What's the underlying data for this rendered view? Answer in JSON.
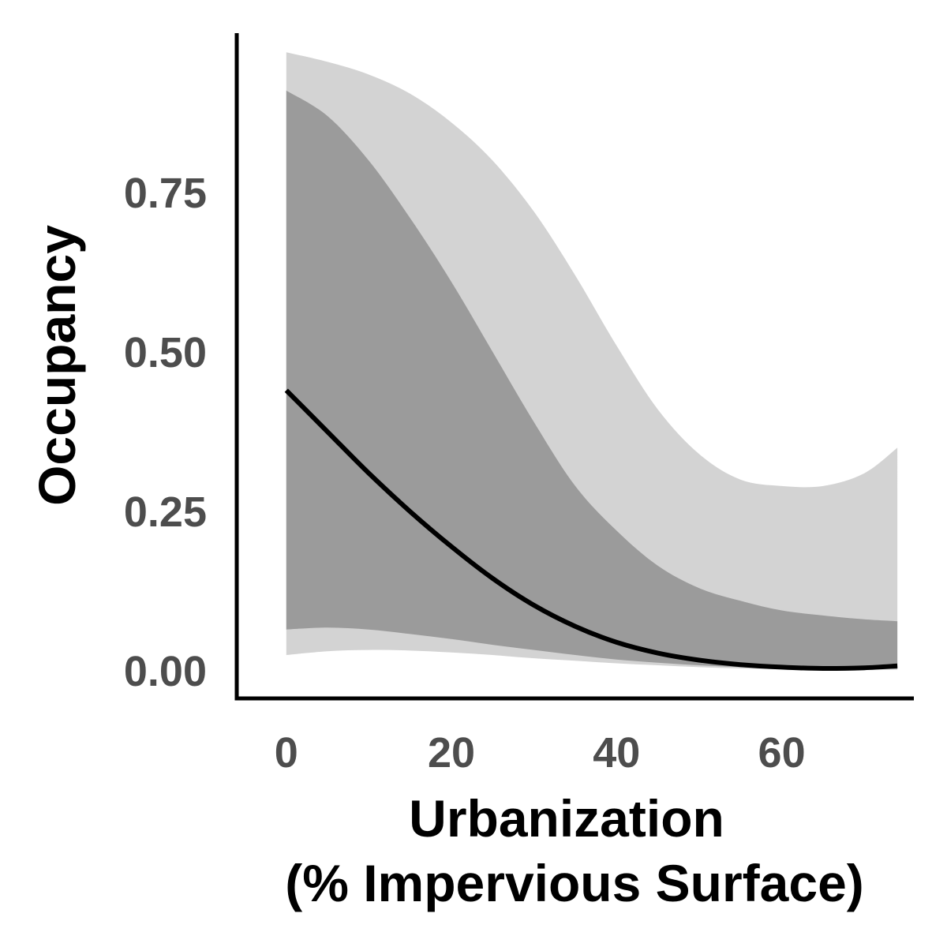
{
  "chart_data": {
    "type": "line",
    "title": "",
    "xlabel": [
      "Urbanization",
      "(% Impervious Surface)"
    ],
    "ylabel": "Occupancy",
    "xlim": [
      -6,
      76
    ],
    "ylim": [
      -0.043,
      1.0
    ],
    "x_ticks": [
      0,
      20,
      40,
      60
    ],
    "x_tick_labels": [
      "0",
      "20",
      "40",
      "60"
    ],
    "y_ticks": [
      0.0,
      0.25,
      0.5,
      0.75
    ],
    "y_tick_labels": [
      "0.00",
      "0.25",
      "0.50",
      "0.75"
    ],
    "grid": false,
    "legend": "none",
    "colors": {
      "outer_band": "#d3d3d3",
      "inner_band": "#9b9b9b",
      "line": "#000000",
      "axis": "#000000",
      "tick_text": "#4d4d4d"
    },
    "series": [
      {
        "kind": "outer_interval",
        "x": [
          0,
          5,
          10,
          15,
          20,
          25,
          30,
          35,
          40,
          45,
          50,
          55,
          60,
          65,
          70,
          74
        ],
        "upper": [
          0.97,
          0.955,
          0.935,
          0.905,
          0.86,
          0.8,
          0.72,
          0.62,
          0.51,
          0.41,
          0.34,
          0.3,
          0.29,
          0.29,
          0.31,
          0.35
        ],
        "lower": [
          0.025,
          0.031,
          0.033,
          0.032,
          0.029,
          0.025,
          0.02,
          0.016,
          0.012,
          0.009,
          0.006,
          0.004,
          0.003,
          0.002,
          0.002,
          0.002
        ]
      },
      {
        "kind": "inner_interval",
        "x": [
          0,
          5,
          10,
          15,
          20,
          25,
          30,
          35,
          40,
          45,
          50,
          55,
          60,
          65,
          70,
          74
        ],
        "upper": [
          0.91,
          0.87,
          0.8,
          0.71,
          0.61,
          0.5,
          0.39,
          0.29,
          0.22,
          0.165,
          0.13,
          0.11,
          0.095,
          0.087,
          0.081,
          0.078
        ],
        "lower": [
          0.065,
          0.068,
          0.065,
          0.058,
          0.05,
          0.041,
          0.033,
          0.025,
          0.018,
          0.013,
          0.009,
          0.006,
          0.004,
          0.003,
          0.003,
          0.003
        ]
      },
      {
        "kind": "mean",
        "x": [
          0,
          5,
          10,
          15,
          20,
          25,
          30,
          35,
          40,
          45,
          50,
          55,
          60,
          65,
          70,
          74
        ],
        "y": [
          0.44,
          0.375,
          0.31,
          0.25,
          0.195,
          0.145,
          0.103,
          0.07,
          0.045,
          0.028,
          0.017,
          0.01,
          0.006,
          0.004,
          0.005,
          0.008
        ]
      }
    ]
  }
}
